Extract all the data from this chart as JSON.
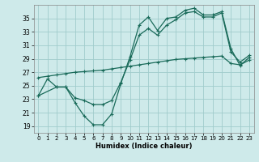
{
  "xlabel": "Humidex (Indice chaleur)",
  "background_color": "#ceeaea",
  "grid_color": "#a0cccc",
  "line_color": "#1a6b5a",
  "xlim": [
    -0.5,
    23.5
  ],
  "ylim": [
    18,
    37
  ],
  "yticks": [
    19,
    21,
    23,
    25,
    27,
    29,
    31,
    33,
    35
  ],
  "xticks": [
    0,
    1,
    2,
    3,
    4,
    5,
    6,
    7,
    8,
    9,
    10,
    11,
    12,
    13,
    14,
    15,
    16,
    17,
    18,
    19,
    20,
    21,
    22,
    23
  ],
  "line1_x": [
    0,
    1,
    2,
    3,
    4,
    5,
    6,
    7,
    8,
    9,
    10,
    11,
    12,
    13,
    14,
    15,
    16,
    17,
    18,
    19,
    20,
    21,
    22,
    23
  ],
  "line1_y": [
    23.5,
    26.0,
    24.8,
    24.8,
    22.5,
    20.5,
    19.2,
    19.2,
    20.8,
    25.3,
    29.3,
    34.0,
    35.2,
    33.2,
    35.0,
    35.2,
    36.2,
    36.5,
    35.5,
    35.5,
    36.0,
    30.5,
    28.0,
    29.2
  ],
  "line2_x": [
    0,
    2,
    3,
    4,
    5,
    6,
    7,
    8,
    9,
    10,
    11,
    12,
    13,
    14,
    15,
    16,
    17,
    18,
    19,
    20,
    21,
    22,
    23
  ],
  "line2_y": [
    23.5,
    24.8,
    24.8,
    23.2,
    22.8,
    22.2,
    22.2,
    22.8,
    25.5,
    28.8,
    32.5,
    33.5,
    32.5,
    34.0,
    34.8,
    35.8,
    36.0,
    35.2,
    35.2,
    35.8,
    30.0,
    28.5,
    29.5
  ],
  "line3_x": [
    0,
    1,
    2,
    3,
    4,
    5,
    6,
    7,
    8,
    9,
    10,
    11,
    12,
    13,
    14,
    15,
    16,
    17,
    18,
    19,
    20,
    21,
    22,
    23
  ],
  "line3_y": [
    26.2,
    26.4,
    26.6,
    26.8,
    27.0,
    27.1,
    27.2,
    27.3,
    27.5,
    27.7,
    27.9,
    28.1,
    28.3,
    28.5,
    28.7,
    28.9,
    29.0,
    29.1,
    29.2,
    29.3,
    29.4,
    28.3,
    28.1,
    28.8
  ]
}
